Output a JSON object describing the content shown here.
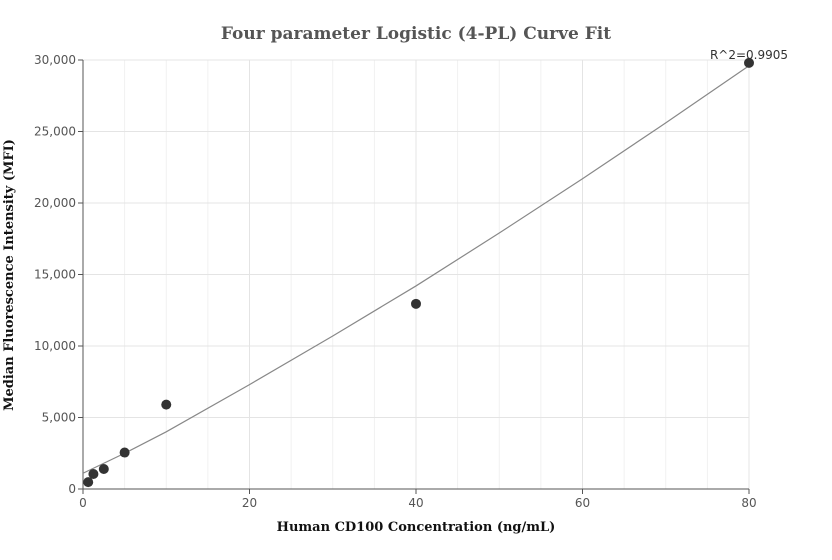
{
  "chart_data": {
    "type": "scatter",
    "title": "Four parameter Logistic (4-PL) Curve Fit",
    "xlabel": "Human CD100 Concentration (ng/mL)",
    "ylabel": "Median Fluorescence Intensity (MFI)",
    "xlim": [
      0,
      80
    ],
    "ylim": [
      0,
      30000
    ],
    "x_ticks": [
      0,
      20,
      40,
      60,
      80
    ],
    "x_tick_labels": [
      "0",
      "20",
      "40",
      "60",
      "80"
    ],
    "y_ticks": [
      0,
      5000,
      10000,
      15000,
      20000,
      25000,
      30000
    ],
    "y_tick_labels": [
      "0",
      "5,000",
      "10,000",
      "15,000",
      "20,000",
      "25,000",
      "30,000"
    ],
    "grid": true,
    "points": {
      "x": [
        0.625,
        1.25,
        2.5,
        5,
        10,
        40,
        80
      ],
      "y": [
        480,
        1050,
        1400,
        2550,
        5900,
        12950,
        29800
      ],
      "color": "#333333"
    },
    "fit_curve": {
      "x": [
        0,
        5,
        10,
        20,
        30,
        40,
        50,
        60,
        70,
        80
      ],
      "y": [
        1100,
        2500,
        4000,
        7300,
        10700,
        14200,
        17900,
        21700,
        25600,
        29600
      ],
      "color": "#888888"
    },
    "annotation": {
      "text": "R^2=0.9905",
      "x": 80,
      "y": 29800
    }
  }
}
